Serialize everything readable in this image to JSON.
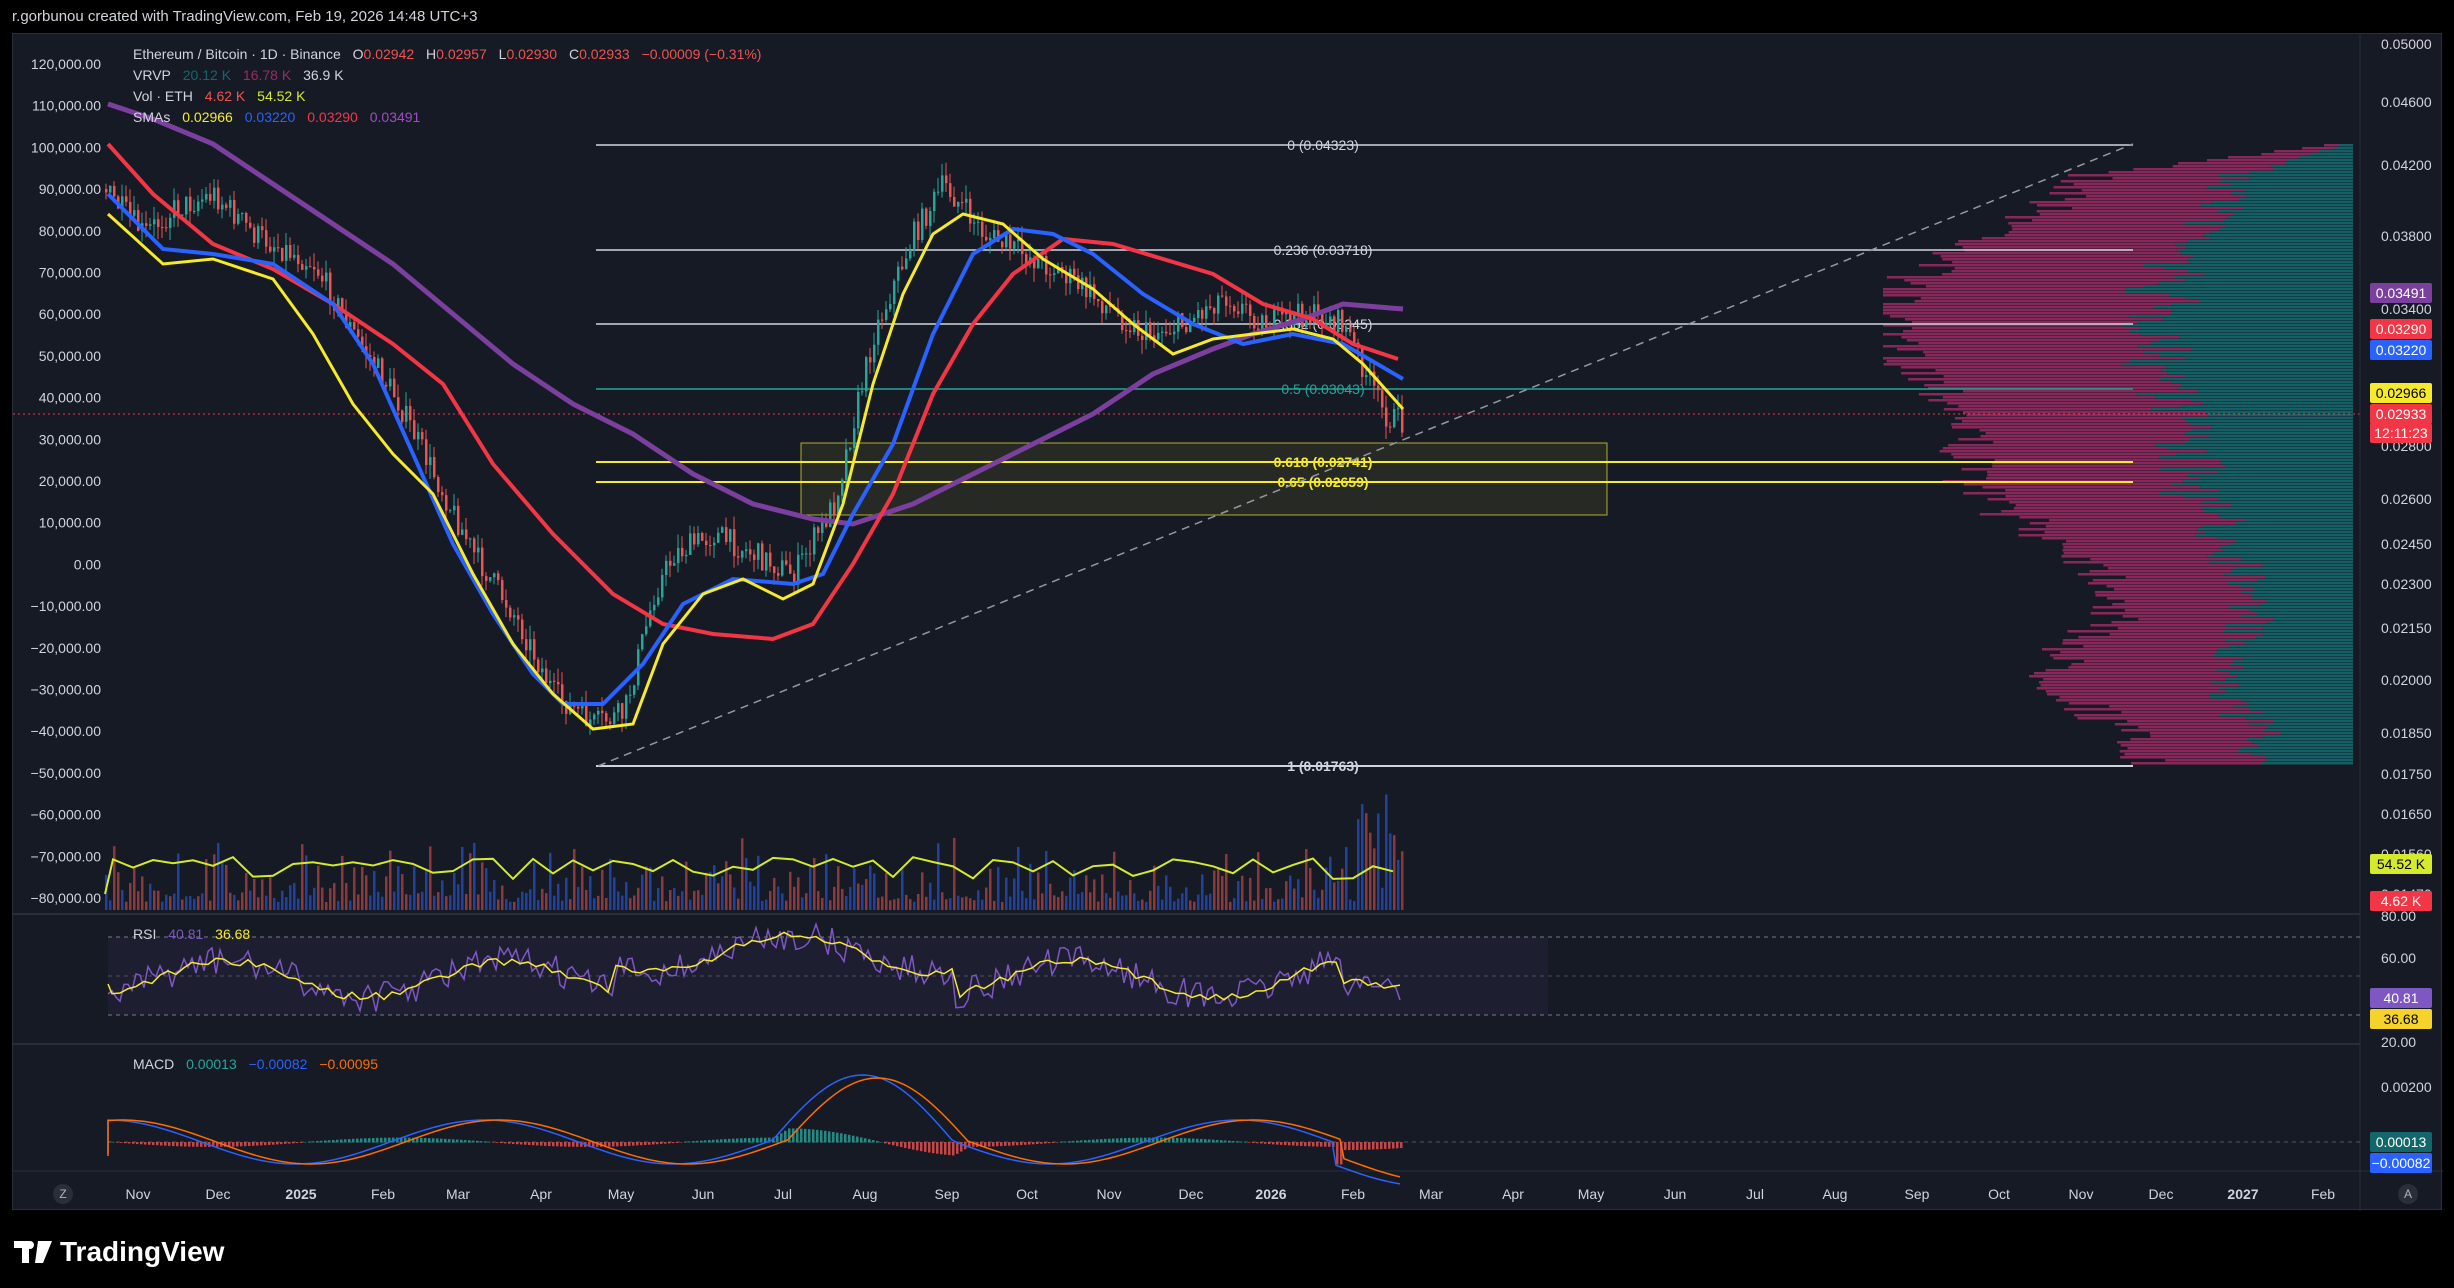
{
  "header": {
    "text": "r.gorbunou created with TradingView.com, Feb 19, 2026 14:48 UTC+3"
  },
  "legend": {
    "symbol": "Ethereum / Bitcoin · 1D · Binance",
    "open_label": "O",
    "open": "0.02942",
    "high_label": "H",
    "high": "0.02957",
    "low_label": "L",
    "low": "0.02930",
    "close_label": "C",
    "close": "0.02933",
    "change": "−0.00009 (−0.31%)",
    "vrvp_label": "VRVP",
    "vrvp_v1": "20.12 K",
    "vrvp_v2": "16.78 K",
    "vrvp_v3": "36.9 K",
    "vol_label": "Vol · ETH",
    "vol_v1": "4.62 K",
    "vol_v2": "54.52 K",
    "sma_label": "SMAs",
    "sma1": "0.02966",
    "sma2": "0.03220",
    "sma3": "0.03290",
    "sma4": "0.03491",
    "rsi_label": "RSI",
    "rsi_v1": "40.81",
    "rsi_v2": "36.68",
    "macd_label": "MACD",
    "macd_v1": "0.00013",
    "macd_v2": "−0.00082",
    "macd_v3": "−0.00095"
  },
  "colors": {
    "sma_yellow": "#f5ea2b",
    "sma_blue": "#2962ff",
    "sma_red": "#f23645",
    "sma_purple": "#7b3f9e",
    "up": "#26a69a",
    "down": "#ef5350",
    "vp_pink": "#9c2a64",
    "vp_teal": "#13676b"
  },
  "left_axis": [
    "120,000.00",
    "110,000.00",
    "100,000.00",
    "90,000.00",
    "80,000.00",
    "70,000.00",
    "60,000.00",
    "50,000.00",
    "40,000.00",
    "30,000.00",
    "20,000.00",
    "10,000.00",
    "0.00",
    "−10,000.00",
    "−20,000.00",
    "−30,000.00",
    "−40,000.00",
    "−50,000.00",
    "−60,000.00",
    "−70,000.00",
    "−80,000.00"
  ],
  "right_axis": [
    "0.05000",
    "0.04600",
    "0.04200",
    "0.03800",
    "0.03400",
    "0.02800",
    "0.02600",
    "0.02450",
    "0.02300",
    "0.02150",
    "0.02000",
    "0.01850",
    "0.01750",
    "0.01650",
    "0.01560",
    "0.01470"
  ],
  "price_tags": [
    {
      "text": "0.03491",
      "bg": "#7b3f9e",
      "fg": "#ffffff"
    },
    {
      "text": "0.03290",
      "bg": "#f23645",
      "fg": "#ffffff"
    },
    {
      "text": "0.03220",
      "bg": "#2962ff",
      "fg": "#ffffff"
    },
    {
      "text": "0.02966",
      "bg": "#f5ea2b",
      "fg": "#000000"
    },
    {
      "text": "0.02933",
      "bg": "#f23645",
      "fg": "#ffffff"
    },
    {
      "text": "12:11:23",
      "bg": "#f23645",
      "fg": "#ffffff"
    },
    {
      "text": "54.52 K",
      "bg": "#d4ea2b",
      "fg": "#000000"
    },
    {
      "text": "4.62 K",
      "bg": "#f23645",
      "fg": "#ffffff"
    }
  ],
  "fib_levels": [
    {
      "label": "0 (0.04323)",
      "color": "#d1d4dc"
    },
    {
      "label": "0.236 (0.03718)",
      "color": "#d1d4dc"
    },
    {
      "label": "0.382 (0.03345)",
      "color": "#d1d4dc"
    },
    {
      "label": "0.5 (0.03043)",
      "color": "#26a69a"
    },
    {
      "label": "0.618 (0.02741)",
      "color": "#f5ea2b"
    },
    {
      "label": "0.65 (0.02659)",
      "color": "#f5ea2b"
    },
    {
      "label": "1 (0.01763)",
      "color": "#d1d4dc"
    }
  ],
  "rsi_axis": [
    "80.00",
    "60.00",
    "20.00"
  ],
  "rsi_tags": [
    {
      "text": "40.81",
      "bg": "#7e57c2",
      "fg": "#ffffff"
    },
    {
      "text": "36.68",
      "bg": "#f5d32b",
      "fg": "#000000"
    }
  ],
  "macd_axis": [
    "0.00200"
  ],
  "macd_tags": [
    {
      "text": "0.00013",
      "bg": "#13676b",
      "fg": "#ffffff"
    },
    {
      "text": "−0.00082",
      "bg": "#2962ff",
      "fg": "#ffffff"
    }
  ],
  "time_axis": [
    "Nov",
    "Dec",
    "2025",
    "Feb",
    "Mar",
    "Apr",
    "May",
    "Jun",
    "Jul",
    "Aug",
    "Sep",
    "Oct",
    "Nov",
    "Dec",
    "2026",
    "Feb",
    "Mar",
    "Apr",
    "May",
    "Jun",
    "Jul",
    "Aug",
    "Sep",
    "Oct",
    "Nov",
    "Dec",
    "2027",
    "Feb"
  ],
  "bottom_buttons": {
    "left": "Z",
    "right": "A"
  },
  "footer": {
    "brand": "TradingView"
  }
}
